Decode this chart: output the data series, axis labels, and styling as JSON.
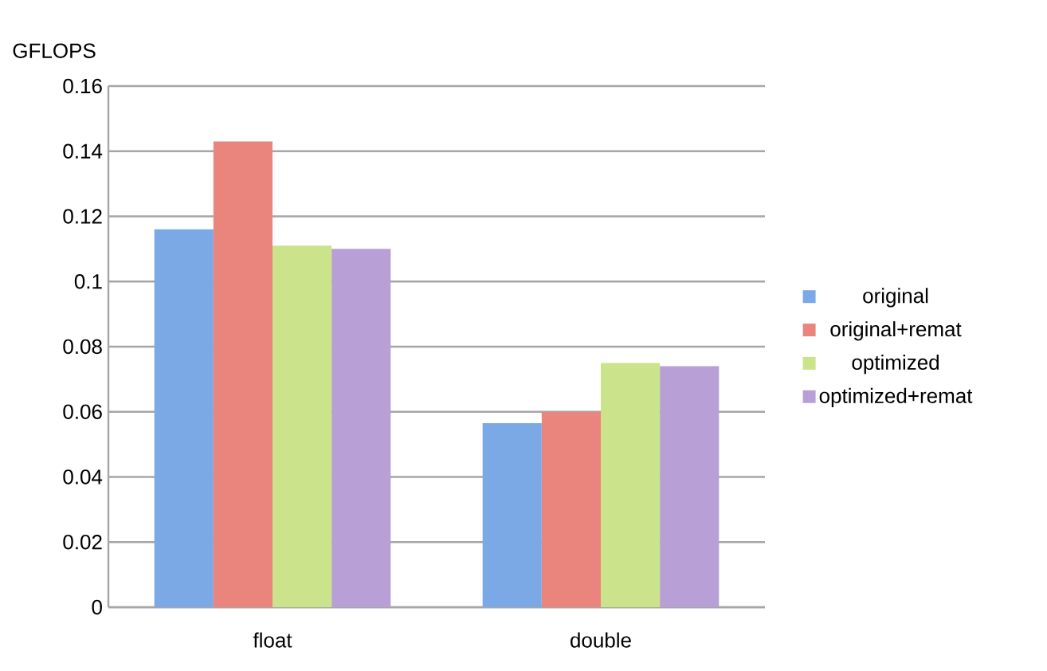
{
  "chart_data": {
    "type": "bar",
    "ylabel": "GFLOPS",
    "categories": [
      "float",
      "double"
    ],
    "series": [
      {
        "name": "original",
        "color": "#7aa9e6",
        "values": [
          0.116,
          0.0565
        ]
      },
      {
        "name": "original+remat",
        "color": "#ea857e",
        "values": [
          0.143,
          0.06
        ]
      },
      {
        "name": "optimized",
        "color": "#cbe38a",
        "values": [
          0.111,
          0.075
        ]
      },
      {
        "name": "optimized+remat",
        "color": "#b8a0d6",
        "values": [
          0.11,
          0.074
        ]
      }
    ],
    "ylim": [
      0,
      0.16
    ],
    "yticks": [
      0,
      0.02,
      0.04,
      0.06,
      0.08,
      0.1,
      0.12,
      0.14,
      0.16
    ],
    "grid": "y",
    "legend": "right"
  }
}
